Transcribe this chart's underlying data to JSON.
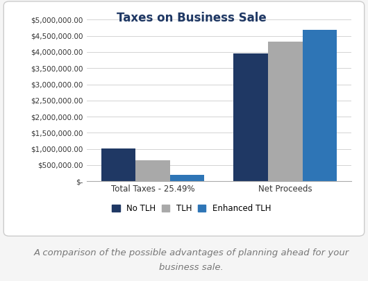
{
  "title": "Taxes on Business Sale",
  "categories": [
    "Total Taxes - 25.49%",
    "Net Proceeds"
  ],
  "series": [
    {
      "label": "No TLH",
      "color": "#1F3864",
      "values": [
        1020000,
        3960000
      ]
    },
    {
      "label": "TLH",
      "color": "#A9A9A9",
      "values": [
        650000,
        4330000
      ]
    },
    {
      "label": "Enhanced TLH",
      "color": "#2E75B6",
      "values": [
        200000,
        4680000
      ]
    }
  ],
  "ylim": [
    0,
    5000000
  ],
  "yticks": [
    0,
    500000,
    1000000,
    1500000,
    2000000,
    2500000,
    3000000,
    3500000,
    4000000,
    4500000,
    5000000
  ],
  "zero_label": "$-",
  "subtitle": "A comparison of the possible advantages of planning ahead for your\nbusiness sale.",
  "background_color": "#F5F5F5",
  "chart_bg_color": "#FFFFFF",
  "border_color": "#CCCCCC",
  "grid_color": "#CCCCCC",
  "title_color": "#1F3864",
  "title_fontsize": 12,
  "subtitle_fontsize": 9.5,
  "subtitle_color": "#777777",
  "bar_width": 0.13,
  "legend_fontsize": 8.5,
  "tick_fontsize": 7.5
}
